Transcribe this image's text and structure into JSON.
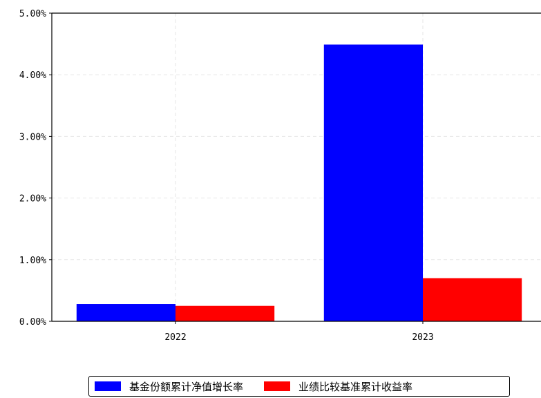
{
  "chart_data": {
    "type": "bar",
    "categories": [
      "2022",
      "2023"
    ],
    "series": [
      {
        "name": "基金份额累计净值增长率",
        "color": "#0000ff",
        "values": [
          0.28,
          4.49
        ]
      },
      {
        "name": "业绩比较基准累计收益率",
        "color": "#ff0000",
        "values": [
          0.25,
          0.7
        ]
      }
    ],
    "ylim": [
      0,
      5
    ],
    "yticks": [
      0,
      1,
      2,
      3,
      4,
      5
    ],
    "ytick_labels": [
      "0.00%",
      "1.00%",
      "2.00%",
      "3.00%",
      "4.00%",
      "5.00%"
    ],
    "grid": true,
    "legend_position": "bottom-center"
  }
}
